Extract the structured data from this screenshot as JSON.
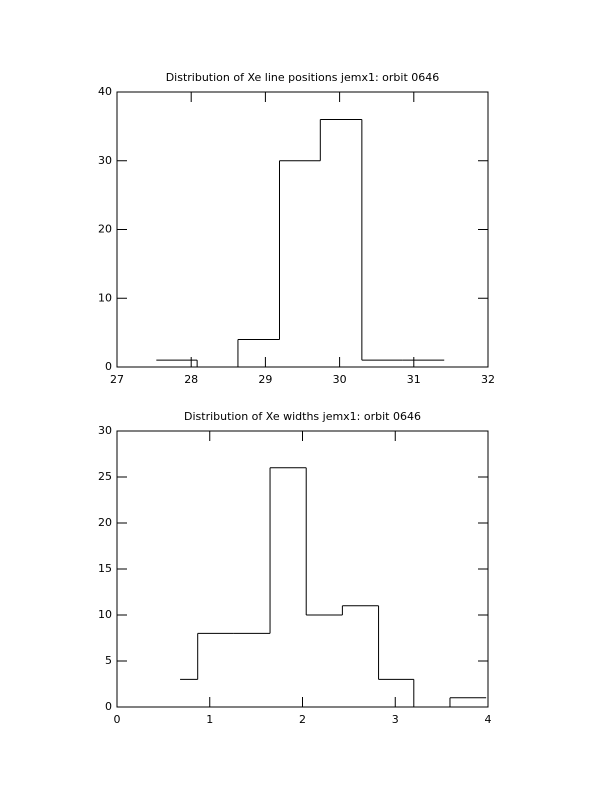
{
  "chart_data": [
    {
      "type": "histogram",
      "title": "Distribution of Xe line positions jemx1: orbit 0646",
      "bins": [
        27.53,
        28.08,
        28.63,
        29.19,
        29.74,
        30.3,
        30.85,
        31.41
      ],
      "values": [
        1,
        0,
        4,
        30,
        36,
        1,
        1
      ],
      "color": "#000000",
      "xlim": [
        27,
        32
      ],
      "xticks": [
        27,
        28,
        29,
        30,
        31,
        32
      ],
      "ylim": [
        0,
        40
      ],
      "yticks": [
        0,
        10,
        20,
        30,
        40
      ]
    },
    {
      "type": "histogram",
      "title": "Distribution of Xe widths jemx1: orbit 0646",
      "bins": [
        0.68,
        0.87,
        1.26,
        1.65,
        2.04,
        2.43,
        2.82,
        3.2,
        3.59,
        3.98
      ],
      "values": [
        3,
        8,
        8,
        26,
        10,
        11,
        3,
        0,
        1
      ],
      "color": "#000000",
      "xlim": [
        0,
        4
      ],
      "xticks": [
        0,
        1,
        2,
        3,
        4
      ],
      "ylim": [
        0,
        30
      ],
      "yticks": [
        0,
        5,
        10,
        15,
        20,
        25,
        30
      ]
    }
  ]
}
